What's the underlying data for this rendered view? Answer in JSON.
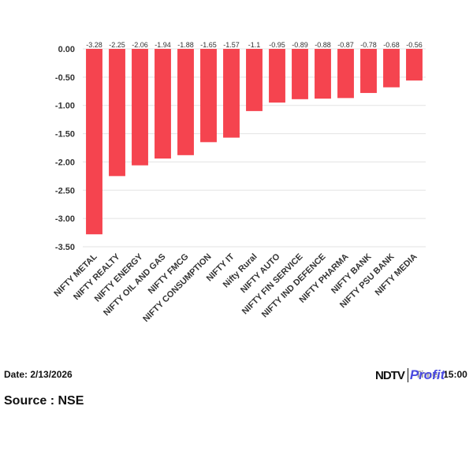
{
  "chart_data": {
    "type": "bar",
    "categories": [
      "NIFTY METAL",
      "NIFTY REALTY",
      "NIFTY ENERGY",
      "NIFTY OIL AND GAS",
      "NIFTY FMCG",
      "NIFTY CONSUMPTION",
      "NIFTY IT",
      "Nifty Rural",
      "NIFTY AUTO",
      "NIFTY FIN SERVICE",
      "NIFTY IND DEFENCE",
      "NIFTY PHARMA",
      "NIFTY BANK",
      "NIFTY PSU BANK",
      "NIFTY MEDIA"
    ],
    "values": [
      -3.28,
      -2.25,
      -2.06,
      -1.94,
      -1.88,
      -1.65,
      -1.57,
      -1.1,
      -0.95,
      -0.89,
      -0.88,
      -0.87,
      -0.78,
      -0.68,
      -0.56
    ],
    "data_labels": [
      "-3.28",
      "-2.25",
      "-2.06",
      "-1.94",
      "-1.88",
      "-1.65",
      "-1.57",
      "-1.1",
      "-0.95",
      "-0.89",
      "-0.88",
      "-0.87",
      "-0.78",
      "-0.68",
      "-0.56"
    ],
    "yticks": [
      "0.00",
      "-0.50",
      "-1.00",
      "-1.50",
      "-2.00",
      "-2.50",
      "-3.00",
      "-3.50"
    ],
    "ylim": [
      -3.5,
      0
    ],
    "grid": true,
    "bar_color": "#f5444f",
    "legend": "none"
  },
  "footer": {
    "date": "Date: 2/13/2026",
    "time": "Time: 15:00",
    "source": "Source : NSE",
    "logo_ndtv": "NDTV",
    "logo_profit": "Profit"
  }
}
